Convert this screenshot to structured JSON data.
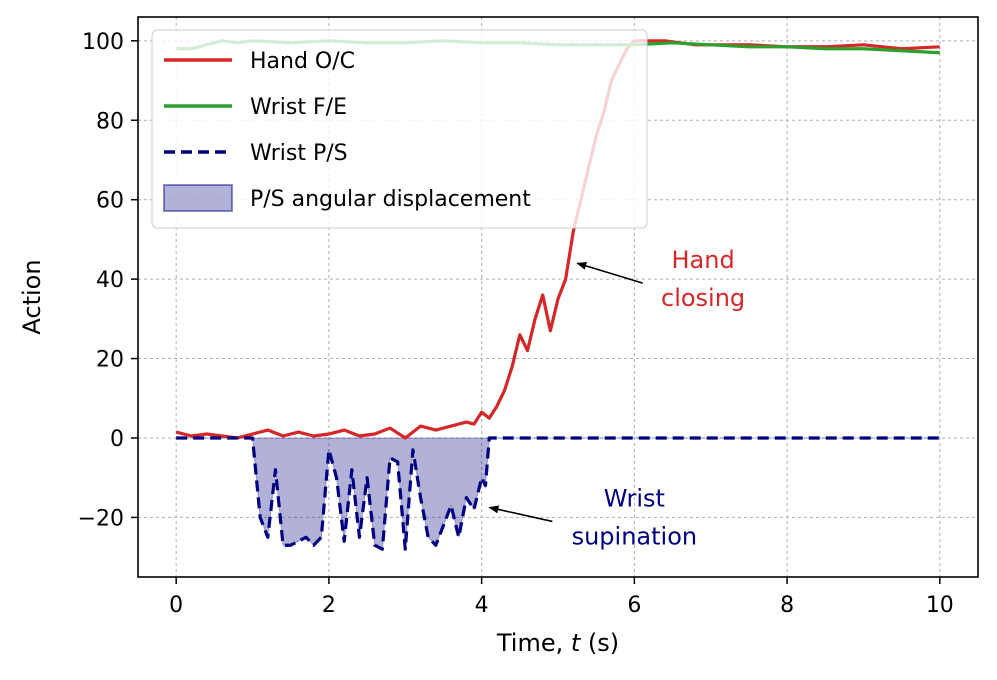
{
  "chart_data": {
    "type": "line",
    "xlabel": "Time, t (s)",
    "xlabel_parts": {
      "before": "Time, ",
      "var": "t",
      "after": " (s)"
    },
    "ylabel": "Action",
    "xlim": [
      -0.5,
      10.5
    ],
    "ylim": [
      -35,
      106
    ],
    "xticks": [
      0,
      2,
      4,
      6,
      8,
      10
    ],
    "yticks": [
      -20,
      0,
      20,
      40,
      60,
      80,
      100
    ],
    "ytick_labels": [
      "−20",
      "0",
      "20",
      "40",
      "60",
      "80",
      "100"
    ],
    "grid": true,
    "legend_position": "top-left",
    "series": [
      {
        "name": "Hand O/C",
        "color": "#d62728",
        "style": "solid",
        "x": [
          0,
          0.2,
          0.4,
          0.6,
          0.8,
          1.0,
          1.2,
          1.4,
          1.6,
          1.8,
          2.0,
          2.2,
          2.4,
          2.6,
          2.8,
          3.0,
          3.2,
          3.4,
          3.6,
          3.8,
          3.9,
          4.0,
          4.1,
          4.2,
          4.3,
          4.4,
          4.5,
          4.6,
          4.7,
          4.8,
          4.9,
          5.0,
          5.1,
          5.2,
          5.3,
          5.4,
          5.5,
          5.6,
          5.7,
          5.8,
          5.9,
          6.0,
          6.2,
          6.4,
          6.6,
          6.8,
          7.0,
          7.5,
          8.0,
          8.5,
          9.0,
          9.5,
          10.0
        ],
        "y": [
          1.5,
          0.5,
          1,
          0.5,
          0,
          1,
          2,
          0.5,
          1.5,
          0.5,
          1,
          2,
          0.5,
          1,
          2.5,
          0,
          3,
          2,
          3,
          4,
          3.5,
          6.5,
          5,
          8,
          12,
          18,
          26,
          22,
          30,
          36,
          27,
          35,
          40,
          52,
          60,
          68,
          76,
          82,
          90,
          94,
          98,
          100,
          100,
          100,
          99.5,
          99,
          99,
          99,
          98.5,
          98.5,
          99,
          98,
          98.5
        ]
      },
      {
        "name": "Wrist F/E",
        "color": "#2ca02c",
        "style": "solid",
        "x": [
          0,
          0.2,
          0.4,
          0.6,
          0.8,
          1.0,
          1.5,
          2.0,
          2.5,
          3.0,
          3.5,
          4.0,
          4.5,
          5.0,
          5.5,
          6.0,
          6.5,
          7.0,
          7.5,
          8.0,
          8.5,
          9.0,
          9.5,
          10.0
        ],
        "y": [
          98,
          98,
          99,
          100,
          99.5,
          100,
          99.5,
          100,
          99.5,
          99.5,
          100,
          99.5,
          99.5,
          99,
          99,
          99,
          99.5,
          99,
          98.5,
          98.5,
          98,
          98,
          97.5,
          97
        ]
      },
      {
        "name": "Wrist P/S",
        "color": "#000080",
        "style": "dashed",
        "x": [
          0,
          0.5,
          0.9,
          1.0,
          1.1,
          1.2,
          1.3,
          1.4,
          1.5,
          1.6,
          1.7,
          1.8,
          1.9,
          2.0,
          2.1,
          2.2,
          2.3,
          2.4,
          2.5,
          2.6,
          2.7,
          2.8,
          2.9,
          3.0,
          3.1,
          3.2,
          3.3,
          3.4,
          3.5,
          3.6,
          3.7,
          3.8,
          3.9,
          4.0,
          4.05,
          4.1,
          4.5,
          5.0,
          6.0,
          7.0,
          8.0,
          9.0,
          10.0
        ],
        "y": [
          0,
          0,
          0,
          0,
          -20,
          -25,
          -8,
          -27,
          -27,
          -26,
          -25,
          -27,
          -25,
          -3,
          -10,
          -26,
          -8,
          -25,
          -10,
          -27,
          -28,
          -5,
          -6,
          -28,
          -3,
          -15,
          -25,
          -27,
          -22,
          -17,
          -25,
          -15,
          -18,
          -10,
          -12,
          0,
          0,
          0,
          0,
          0,
          0,
          0,
          0
        ]
      }
    ],
    "fill": {
      "name": "P/S angular displacement",
      "color": "#000080",
      "alpha": 0.3,
      "between": [
        "Wrist P/S",
        0
      ]
    },
    "annotations": [
      {
        "text_lines": [
          "Hand",
          "closing"
        ],
        "color": "#d62728",
        "text_x": 6.9,
        "text_y": 40,
        "arrow_to": [
          5.2,
          44
        ]
      },
      {
        "text_lines": [
          "Wrist",
          "supination"
        ],
        "color": "#000080",
        "text_x": 6.0,
        "text_y": -20,
        "arrow_to": [
          4.05,
          -17.5
        ]
      }
    ]
  }
}
